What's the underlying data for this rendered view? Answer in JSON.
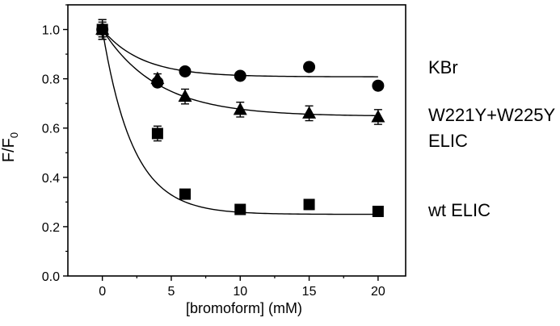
{
  "chart_data": {
    "type": "scatter",
    "xlabel": "[bromoform] (mM)",
    "ylabel": "F/F",
    "ylabel_sub": "0",
    "xlim": [
      -2.5,
      22
    ],
    "ylim": [
      0,
      1.1
    ],
    "xticks": [
      "0",
      "5",
      "10",
      "15",
      "20"
    ],
    "xtick_values": [
      0,
      5,
      10,
      15,
      20
    ],
    "yticks": [
      "0.0",
      "0.2",
      "0.4",
      "0.6",
      "0.8",
      "1.0"
    ],
    "ytick_values": [
      0,
      0.2,
      0.4,
      0.6,
      0.8,
      1.0
    ],
    "grid": false,
    "series": [
      {
        "name": "KBr",
        "marker": "circle",
        "x": [
          0,
          4,
          6,
          10,
          15,
          20
        ],
        "y": [
          1.0,
          0.785,
          0.83,
          0.812,
          0.848,
          0.772
        ],
        "err": [
          0.03,
          0.01,
          0.01,
          0.01,
          0.01,
          0.01
        ],
        "fit": {
          "plateau": 0.808,
          "k": 0.35
        }
      },
      {
        "name": "W221Y+W225Y",
        "name_line2": "ELIC",
        "marker": "triangle",
        "x": [
          0,
          4,
          6,
          10,
          15,
          20
        ],
        "y": [
          1.0,
          0.8,
          0.728,
          0.675,
          0.66,
          0.645
        ],
        "err": [
          0.04,
          0.02,
          0.03,
          0.03,
          0.03,
          0.03
        ],
        "fit": {
          "plateau": 0.648,
          "k": 0.25
        }
      },
      {
        "name": "wt ELIC",
        "marker": "square",
        "x": [
          0,
          4,
          6,
          10,
          15,
          20
        ],
        "y": [
          1.0,
          0.578,
          0.332,
          0.27,
          0.29,
          0.262
        ],
        "err": [
          0.04,
          0.03,
          0.01,
          0.01,
          0.02,
          0.01
        ],
        "fit": {
          "plateau": 0.25,
          "k": 0.45
        }
      }
    ]
  }
}
